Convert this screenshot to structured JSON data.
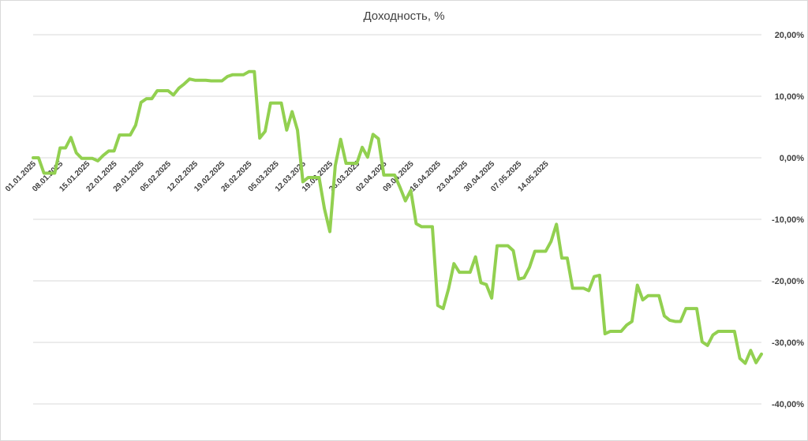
{
  "chart_data": {
    "type": "line",
    "title": "Доходность, %",
    "xlabel": "",
    "ylabel": "",
    "ylim": [
      -40,
      20
    ],
    "yticks": [
      20,
      10,
      0,
      -10,
      -20,
      -30,
      -40
    ],
    "ytick_labels": [
      "20,00%",
      "10,00%",
      "0,00%",
      "-10,00%",
      "-20,00%",
      "-30,00%",
      "-40,00%"
    ],
    "y_axis_position": "right",
    "grid": true,
    "legend": "none",
    "line_color": "#92d050",
    "x_tick_labels": [
      "01.01.2025",
      "08.01.2025",
      "15.01.2025",
      "22.01.2025",
      "29.01.2025",
      "05.02.2025",
      "12.02.2025",
      "19.02.2025",
      "26.02.2025",
      "05.03.2025",
      "12.03.2025",
      "19.03.2025",
      "26.03.2025",
      "02.04.2025",
      "09.04.2025",
      "16.04.2025",
      "23.04.2025",
      "30.04.2025",
      "07.05.2025",
      "14.05.2025"
    ],
    "series": [
      {
        "values": [
          0,
          0,
          -2.5,
          -2.5,
          -2.5,
          1.6,
          1.6,
          3.3,
          0.8,
          -0.1,
          -0.1,
          -0.1,
          -0.5,
          0.4,
          1.1,
          1.1,
          3.7,
          3.7,
          3.7,
          5.3,
          9,
          9.6,
          9.6,
          10.9,
          10.9,
          10.9,
          10.2,
          11.3,
          12,
          12.8,
          12.6,
          12.6,
          12.6,
          12.5,
          12.5,
          12.5,
          13.2,
          13.5,
          13.5,
          13.5,
          14,
          14,
          3.2,
          4.3,
          8.9,
          8.9,
          8.9,
          4.5,
          7.5,
          4.5,
          -3.9,
          -3.2,
          -3.2,
          -3.2,
          -8.3,
          -12,
          -1.3,
          3,
          -0.9,
          -0.9,
          -0.9,
          1.7,
          0.1,
          3.8,
          3.1,
          -2.8,
          -2.8,
          -2.8,
          -4.8,
          -7,
          -5.3,
          -10.7,
          -11.2,
          -11.2,
          -11.2,
          -24,
          -24.5,
          -21.3,
          -17.2,
          -18.6,
          -18.6,
          -18.6,
          -16.1,
          -20.3,
          -20.6,
          -22.8,
          -14.3,
          -14.3,
          -14.3,
          -15.1,
          -19.7,
          -19.5,
          -17.8,
          -15.2,
          -15.2,
          -15.2,
          -13.6,
          -10.8,
          -16.3,
          -16.3,
          -21.2,
          -21.2,
          -21.2,
          -21.6,
          -19.3,
          -19.1,
          -28.6,
          -28.2,
          -28.2,
          -28.2,
          -27.2,
          -26.6,
          -20.7,
          -23.1,
          -22.4,
          -22.4,
          -22.4,
          -25.7,
          -26.4,
          -26.6,
          -26.6,
          -24.5,
          -24.5,
          -24.5,
          -29.9,
          -30.5,
          -28.8,
          -28.2,
          -28.2,
          -28.2,
          -28.2,
          -32.6,
          -33.4,
          -31.3,
          -33.3,
          -31.9
        ]
      }
    ]
  }
}
